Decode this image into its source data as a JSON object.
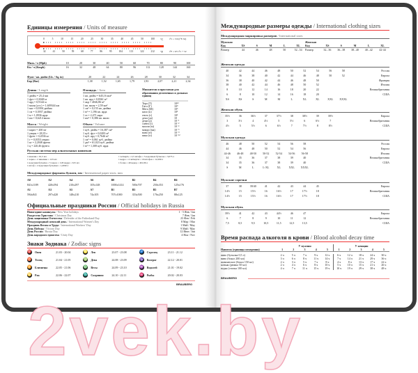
{
  "left": {
    "units_title": "Единицы измерения",
    "units_title_en": " / Units of measure",
    "thermo": {
      "c": [
        "0",
        "5",
        "10",
        "15",
        "20",
        "25",
        "30",
        "35",
        "40",
        "45",
        "50",
        "100"
      ],
      "f": [
        "32",
        "41",
        "50",
        "59",
        "68",
        "77",
        "86",
        "95",
        "104",
        "113",
        "122",
        "212"
      ],
      "c_unit": "°C",
      "f_unit": "°F",
      "c_formula": "t°C = 5/9 (t°F-32)",
      "f_formula": "t°F = 9/5 t°C + 32",
      "color": "#e31"
    },
    "speed": [
      [
        "Миль / ч (Mph)",
        "10",
        "20",
        "30",
        "40",
        "50",
        "60",
        "70",
        "80",
        "90",
        "100"
      ],
      [
        "Км / ч (Kmph)",
        "16",
        "32",
        "48",
        "64",
        "80",
        "96",
        "112",
        "128",
        "144",
        "160"
      ]
    ],
    "pressure": [
      [
        "Фунт / кв. дюйм (Lb. / Sq. in)",
        "20",
        "22",
        "24",
        "26",
        "28",
        "30",
        "32",
        "34"
      ],
      [
        "Бар (Bar)",
        "1,38",
        "1,52",
        "1,65",
        "1,79",
        "1,93",
        "2,07",
        "2,21",
        "2,34"
      ]
    ],
    "length": {
      "title": "Длина",
      "en": " / Length",
      "items": [
        "1 дюйм = 25,4 мм",
        "1 фут = 0,3048 м",
        "1 ярд = 0,9144 м",
        "1 миля (уст.) = 1,609344 км",
        "1 мм = 0,0394 дюйма",
        "1 см = 0,3937 дюйма",
        "1 м = 1,0936 ярда",
        "1 км = 0,6214 мили"
      ]
    },
    "area": {
      "title": "Площадь",
      "en": " / Area",
      "items": [
        "1 кв. дюйм = 645,16 мм²",
        "1 кв. ярд = 0,8361 м²",
        "1 акр = 4046,86 м²",
        "1 кв. миля = 2,59 км²",
        "1 см² = 0,155 кв. дюйма",
        "1 м² = 1,196 кв. ярда",
        "1 га = 2,471 акра",
        "1 км² = 0,386 кв. мили"
      ]
    },
    "mass": {
      "title": "Масса",
      "en": " / Weight",
      "items": [
        "1 карат = 200 мг",
        "1 унция = 28,35 г",
        "1 фунт = 0,4536 кг",
        "1 г = 0,0353 унции",
        "1 кг = 2,2046 фунта",
        "1 ц = 220,46 фунта"
      ]
    },
    "volume": {
      "title": "Объем",
      "en": " / Volume",
      "items": [
        "1 куб. дюйм = 16,387 см³",
        "1 куб. фут = 0,0283 м³",
        "1 куб. ярд = 0,7646 м³",
        "1 см³ = 0,061 куб. дюйма",
        "1 дм³ = 61,023 куб. дюйма",
        "1 м³ = 1,308 куб. ярда"
      ]
    },
    "prefixes": {
      "title": "Множители и приставки для образования десятичных и дольных единиц",
      "items": [
        [
          "Тера (Т)",
          "10¹²"
        ],
        [
          "Гига (Г)",
          "10⁹"
        ],
        [
          "Мега (М)",
          "10⁶"
        ],
        [
          "кило (к)",
          "10³"
        ],
        [
          "гекто (г)",
          "10²"
        ],
        [
          "дека (да)",
          "10"
        ],
        [
          "деци (д)",
          "10⁻¹"
        ],
        [
          "санти (с)",
          "10⁻²"
        ],
        [
          "милли (м)",
          "10⁻³"
        ],
        [
          "микро (мк)",
          "10⁻⁶"
        ],
        [
          "нано (н)",
          "10⁻⁹"
        ],
        [
          "пико (п)",
          "10⁻¹²"
        ]
      ]
    },
    "ru_alcohol": {
      "title": "Русская система мер алкогольных напитков",
      "col1": [
        "1 шкалик = 61,5 мл",
        "1 чарка = 2 шкалика = 123 мл",
        "1 водочная бутылка = 5 чарок = 1/20 ведра = 615 мл",
        "1 штоф = 2 водочных бутылки = 1,2299 л"
      ],
      "col2": [
        "1 четверть = 2,5 штофа = 5 водочных бутылок = 3,075 л",
        "1 ведро = 4 четверти = 10 штофов = 12,299 л",
        "1 бочка = 40 ведер = 491,96 л"
      ]
    },
    "paper": {
      "title": "Международные форматы бумаги, мм",
      "en": " / International paper sizes, mm",
      "rows": [
        [
          "A0",
          "A2",
          "A4",
          "A6",
          "B0",
          "B2",
          "B4",
          "B6"
        ],
        [
          "841x1189",
          "420x594",
          "210x297",
          "105x148",
          "1000x1414",
          "500x707",
          "250x353",
          "125x176"
        ],
        [
          "A1",
          "A3",
          "A5",
          "A7",
          "B1",
          "B3",
          "B5",
          "B7"
        ],
        [
          "594x841",
          "297x420",
          "148x210",
          "74x105",
          "707x1000",
          "353x500",
          "176x250",
          "88x125"
        ]
      ]
    },
    "holidays": {
      "title": "Официальные праздники России",
      "en": " / Official holidays in Russia",
      "items": [
        [
          "Новогодние каникулы",
          " / New Year holidays",
          "1 - 5 Янв / Jan"
        ],
        [
          "Рождество Христово",
          " / Christmas Day",
          "7 Янв / Jan"
        ],
        [
          "День защитника Отечества",
          " / Defender of the Fatherland Day",
          "23 Фев / Feb"
        ],
        [
          "Международный женский день",
          " / International Women's Day",
          "8 Мар / Mar"
        ],
        [
          "Праздник Весны и Труда",
          " / International Workers' Day",
          "1 Май / May"
        ],
        [
          "День Победы",
          " / Victory Day",
          "9 Май / May"
        ],
        [
          "День России",
          " / Russia Day",
          "12 Июн / Jun"
        ],
        [
          "День народного единства",
          " / Unity Day",
          "4 Ноя / Nov"
        ]
      ]
    },
    "zodiac": {
      "title": "Знаки Зодиака",
      "en": " / Zodiac signs",
      "items": [
        [
          "♈",
          "Овен",
          "21.03 - 20.04"
        ],
        [
          "♌",
          "Лев",
          "23.07 - 23.08"
        ],
        [
          "♐",
          "Стрелец",
          "23.11 - 21.12"
        ],
        [
          "♉",
          "Телец",
          "21.04 - 21.05"
        ],
        [
          "♍",
          "Дева",
          "24.08 - 23.09"
        ],
        [
          "♑",
          "Козерог",
          "22.12 - 20.01"
        ],
        [
          "♊",
          "Близнецы",
          "22.05 - 21.06"
        ],
        [
          "♎",
          "Весы",
          "24.09 - 23.10"
        ],
        [
          "♒",
          "Водолей",
          "21.01 - 19.02"
        ],
        [
          "♋",
          "Рак",
          "22.06 - 22.07"
        ],
        [
          "♏",
          "Скорпион",
          "24.10 - 22.11"
        ],
        [
          "♓",
          "Рыбы",
          "20.02 - 20.03"
        ]
      ]
    },
    "logo": "BRAUBERG"
  },
  "right": {
    "title": "Международные размеры одежды",
    "title_en": " / International clothing sizes",
    "intl": {
      "title": "Международная маркировка размеров",
      "en": " / International sizes",
      "rows": [
        [
          "Мужская",
          "",
          "",
          "",
          "",
          "",
          "Женская",
          "",
          "",
          "",
          "",
          ""
        ],
        [
          "Код",
          "XS",
          "S",
          "M",
          "L",
          "XL",
          "Код",
          "XS",
          "S",
          "M",
          "L",
          "XL"
        ],
        [
          "Размер",
          "44",
          "46",
          "48",
          "50",
          "52...54",
          "Размер",
          "32...36",
          "36...38",
          "38...40",
          "40...42",
          "42-44"
        ]
      ]
    },
    "women_clothing": {
      "title": "Женская одежда",
      "rows": [
        [
          "40",
          "42",
          "44",
          "46",
          "48",
          "50",
          "52",
          "54",
          "56",
          "58",
          "Россия"
        ],
        [
          "34",
          "36",
          "38",
          "40",
          "42",
          "44",
          "46",
          "48",
          "50",
          "52",
          "Европа"
        ],
        [
          "36",
          "38",
          "40",
          "42",
          "44",
          "46",
          "48",
          "50",
          "",
          "",
          "Франция"
        ],
        [
          "38",
          "40",
          "42",
          "44",
          "46",
          "48",
          "50",
          "52",
          "",
          "",
          "Италия"
        ],
        [
          "8",
          "10",
          "12",
          "14",
          "16",
          "18",
          "20",
          "22",
          "",
          "",
          "Великобритания"
        ],
        [
          "6",
          "8",
          "10",
          "12",
          "14",
          "16",
          "18",
          "20",
          "",
          "",
          "США"
        ],
        [
          "XS",
          "XS",
          "S",
          "M",
          "M",
          "L",
          "XL",
          "XL",
          "XXL",
          "XXXL",
          ""
        ]
      ]
    },
    "women_shoes": {
      "title": "Женская обувь",
      "rows": [
        [
          "35½",
          "36",
          "36½",
          "37",
          "37½",
          "38",
          "38½",
          "39",
          "39½",
          "",
          "Европа"
        ],
        [
          "3",
          "3½",
          "4",
          "4½",
          "5",
          "5½",
          "6",
          "6½",
          "7",
          "",
          "Великобритания"
        ],
        [
          "4½",
          "5",
          "5½",
          "6",
          "6½",
          "7",
          "7½",
          "8",
          "8½",
          "",
          "США"
        ]
      ]
    },
    "men_clothing": {
      "title": "Мужская одежда",
      "rows": [
        [
          "46",
          "48",
          "50",
          "52",
          "54",
          "56",
          "58",
          "",
          "",
          "",
          "Россия"
        ],
        [
          "44",
          "46",
          "48",
          "50",
          "52",
          "54",
          "56",
          "",
          "",
          "",
          "Европа"
        ],
        [
          "44-46",
          "46-48",
          "48-50",
          "50-52",
          "52-54",
          "54-56",
          "56-58",
          "",
          "",
          "",
          "Италия"
        ],
        [
          "34",
          "35",
          "36",
          "37",
          "38",
          "39",
          "40",
          "",
          "",
          "",
          "Великобритания"
        ],
        [
          "34",
          "35",
          "36",
          "37",
          "38",
          "39",
          "40",
          "",
          "",
          "",
          "США"
        ],
        [
          "S",
          "M",
          "L",
          "L-XL",
          "XL",
          "XXL",
          "XXXL",
          "",
          "",
          "",
          ""
        ]
      ]
    },
    "men_shirts": {
      "title": "Мужские сорочки",
      "rows": [
        [
          "37",
          "38",
          "39/40",
          "41",
          "42",
          "43",
          "44",
          "45",
          "",
          "",
          "Европа"
        ],
        [
          "14½",
          "15",
          "15½",
          "16",
          "16½",
          "17",
          "17½",
          "18",
          "",
          "",
          "Великобритания"
        ],
        [
          "14½",
          "15",
          "15½",
          "16",
          "16½",
          "17",
          "17½",
          "18",
          "",
          "",
          "США"
        ]
      ]
    },
    "men_shoes": {
      "title": "Мужская обувь",
      "rows": [
        [
          "39½",
          "41",
          "42",
          "43",
          "44½",
          "46",
          "47",
          "",
          "",
          "",
          "Европа"
        ],
        [
          "6",
          "7",
          "8",
          "9",
          "10",
          "11",
          "12",
          "",
          "",
          "",
          "Великобритания"
        ],
        [
          "7,5",
          "8,5",
          "9,5",
          "10,5",
          "11,5",
          "12,5",
          "13,5",
          "",
          "",
          "",
          "США"
        ]
      ]
    },
    "alcohol": {
      "title": "Время распада алкоголя в крови",
      "en": " / Blood alcohol decay time",
      "men": "У мужчин",
      "women": "У женщин",
      "header": [
        "Напиток (единицы измерения)",
        "1",
        "2",
        "3",
        "4",
        "5",
        "1",
        "2",
        "3",
        "4",
        "5"
      ],
      "rows": [
        [
          "пиво (бутылка 0,5 л)",
          "2 ч",
          "5 ч",
          "7 ч",
          "9 ч",
          "12 ч",
          "6 ч",
          "12 ч",
          "18 ч",
          "24 ч",
          "30 ч"
        ],
        [
          "вино (бокал 200 мл)",
          "3 ч",
          "6 ч",
          "8 ч",
          "11 ч",
          "14 ч",
          "7 ч",
          "14 ч",
          "21 ч",
          "29 ч",
          "36 ч"
        ],
        [
          "шампанское (бокал 150 мл)",
          "2 ч",
          "3 ч",
          "5 ч",
          "7 ч",
          "8 ч",
          "4 ч",
          "8 ч",
          "13 ч",
          "17 ч",
          "22 ч"
        ],
        [
          "коньяк (рюмка 50 мл)",
          "2 ч",
          "4 ч",
          "6 ч",
          "8 ч",
          "10 ч",
          "5 ч",
          "10 ч",
          "15 ч",
          "21 ч",
          "26 ч"
        ],
        [
          "водка (стопка 100 мл)",
          "4 ч",
          "7 ч",
          "11 ч",
          "15 ч",
          "19 ч",
          "10 ч",
          "19 ч",
          "29 ч",
          "38 ч",
          "48 ч"
        ]
      ]
    },
    "logo": "BRAUBERG"
  },
  "watermark": "2vek.by"
}
